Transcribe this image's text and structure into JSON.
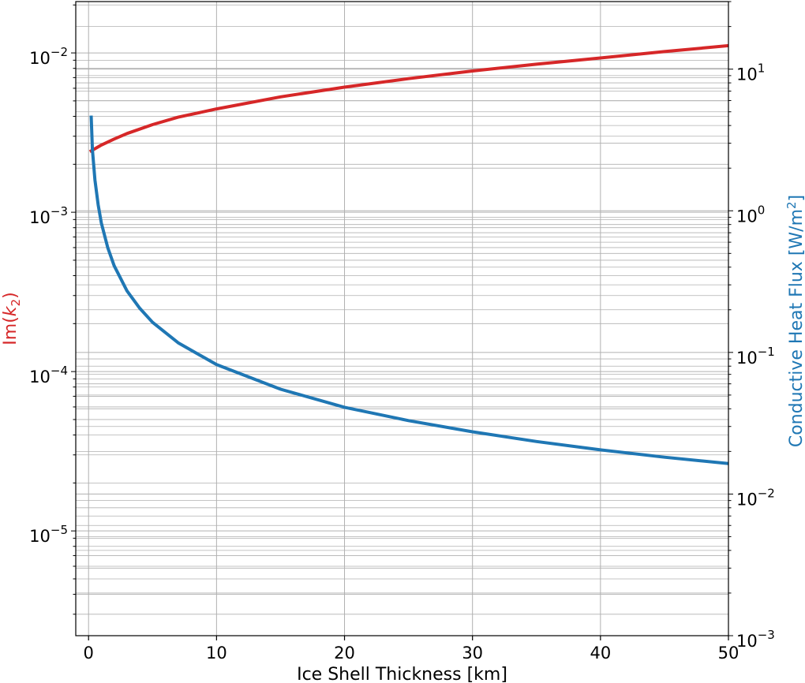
{
  "chart_data": {
    "type": "line",
    "title": "",
    "xlabel": "Ice Shell Thickness [km]",
    "ylabel_left": {
      "prefix": "Im(",
      "var": "k",
      "sub": "2",
      "suffix": ")"
    },
    "ylabel_right": {
      "prefix": "Conductive Heat Flux [W/m",
      "sup": "2",
      "suffix": "]"
    },
    "xlim": [
      -1,
      50
    ],
    "ylim_left": [
      2.2e-06,
      0.021
    ],
    "ylim_right": [
      0.001,
      30
    ],
    "yscale_left": "log",
    "yscale_right": "log",
    "grid": true,
    "x_ticks": [
      {
        "value": 0,
        "label": "0"
      },
      {
        "value": 10,
        "label": "10"
      },
      {
        "value": 20,
        "label": "20"
      },
      {
        "value": 30,
        "label": "30"
      },
      {
        "value": 40,
        "label": "40"
      },
      {
        "value": 50,
        "label": "50"
      }
    ],
    "left_ticks": [
      {
        "value": 0.01,
        "base": "10",
        "exp": "−2"
      },
      {
        "value": 0.001,
        "base": "10",
        "exp": "−3"
      },
      {
        "value": 0.0001,
        "base": "10",
        "exp": "−4"
      },
      {
        "value": 1e-05,
        "base": "10",
        "exp": "−5"
      }
    ],
    "right_ticks": [
      {
        "value": 10,
        "base": "10",
        "exp": "1"
      },
      {
        "value": 1,
        "base": "10",
        "exp": "0"
      },
      {
        "value": 0.1,
        "base": "10",
        "exp": "−1"
      },
      {
        "value": 0.01,
        "base": "10",
        "exp": "−2"
      },
      {
        "value": 0.001,
        "base": "10",
        "exp": "−3"
      }
    ],
    "series": [
      {
        "axis": "left",
        "color": "#d62728",
        "x": [
          0.1,
          1,
          2,
          3,
          5,
          7,
          10,
          15,
          20,
          25,
          30,
          35,
          40,
          45,
          50
        ],
        "values": [
          0.0024,
          0.00264,
          0.00288,
          0.00312,
          0.00355,
          0.00395,
          0.00445,
          0.0053,
          0.0061,
          0.0069,
          0.0077,
          0.0085,
          0.0093,
          0.0102,
          0.0111
        ]
      },
      {
        "axis": "right",
        "color": "#1f77b4",
        "x": [
          0.2,
          0.3,
          0.5,
          0.75,
          1,
          1.5,
          2,
          3,
          4,
          5,
          7,
          10,
          15,
          20,
          25,
          30,
          35,
          40,
          45,
          50
        ],
        "values": [
          4.7,
          2.7,
          1.65,
          1.1,
          0.82,
          0.55,
          0.41,
          0.272,
          0.205,
          0.163,
          0.117,
          0.082,
          0.055,
          0.041,
          0.033,
          0.0275,
          0.0235,
          0.0205,
          0.0182,
          0.0164
        ]
      }
    ]
  }
}
